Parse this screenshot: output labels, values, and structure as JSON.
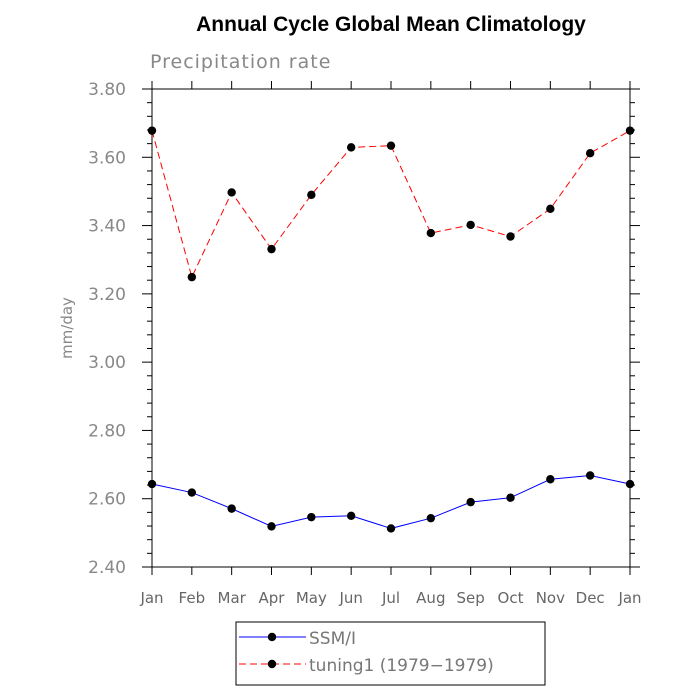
{
  "chart_data": {
    "type": "line",
    "title": "Annual Cycle Global Mean Climatology",
    "subtitle": "Precipitation rate",
    "ylabel": "mm/day",
    "xlabel": "",
    "ylim": [
      2.4,
      3.8
    ],
    "yticks": [
      "2.40",
      "2.60",
      "2.80",
      "3.00",
      "3.20",
      "3.40",
      "3.60",
      "3.80"
    ],
    "categories": [
      "Jan",
      "Feb",
      "Mar",
      "Apr",
      "May",
      "Jun",
      "Jul",
      "Aug",
      "Sep",
      "Oct",
      "Nov",
      "Dec",
      "Jan"
    ],
    "series": [
      {
        "name": "SSM/I",
        "color": "#0000ff",
        "dash": "solid",
        "values": [
          2.643,
          2.618,
          2.571,
          2.519,
          2.546,
          2.55,
          2.513,
          2.543,
          2.59,
          2.603,
          2.657,
          2.668,
          2.643
        ]
      },
      {
        "name": "tuning1 (1979−1979)",
        "color": "#ff0000",
        "dash": "dashed",
        "values": [
          3.678,
          3.249,
          3.497,
          3.331,
          3.49,
          3.629,
          3.634,
          3.378,
          3.402,
          3.368,
          3.449,
          3.612,
          3.678
        ]
      }
    ],
    "legend": [
      "SSM/I",
      "tuning1 (1979−1979)"
    ]
  }
}
